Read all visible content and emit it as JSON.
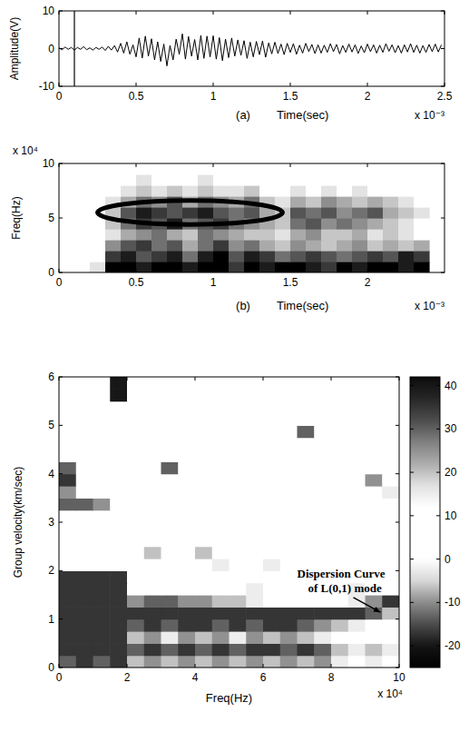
{
  "chart_data": [
    {
      "type": "line",
      "panel": "(a)",
      "x_label": "Time(sec)",
      "y_label": "Amplitude(V)",
      "x_multiplier": "x 10⁻³",
      "color": "#000000",
      "xlim": [
        0,
        2.5
      ],
      "ylim": [
        -10,
        10
      ],
      "xticks": [
        0,
        0.5,
        1,
        1.5,
        2,
        2.5
      ],
      "yticks": [
        -10,
        0,
        10
      ],
      "marker_x": 0.1,
      "x": [
        0,
        0.02,
        0.04,
        0.06,
        0.08,
        0.1,
        0.12,
        0.14,
        0.16,
        0.18,
        0.2,
        0.22,
        0.24,
        0.26,
        0.28,
        0.3,
        0.32,
        0.34,
        0.36,
        0.38,
        0.4,
        0.42,
        0.44,
        0.46,
        0.48,
        0.5,
        0.52,
        0.54,
        0.56,
        0.58,
        0.6,
        0.62,
        0.64,
        0.66,
        0.68,
        0.7,
        0.72,
        0.74,
        0.76,
        0.78,
        0.8,
        0.82,
        0.84,
        0.86,
        0.88,
        0.9,
        0.92,
        0.94,
        0.96,
        0.98,
        1,
        1.02,
        1.04,
        1.06,
        1.08,
        1.1,
        1.12,
        1.14,
        1.16,
        1.18,
        1.2,
        1.22,
        1.24,
        1.26,
        1.28,
        1.3,
        1.32,
        1.34,
        1.36,
        1.38,
        1.4,
        1.42,
        1.44,
        1.46,
        1.48,
        1.5,
        1.52,
        1.54,
        1.56,
        1.58,
        1.6,
        1.62,
        1.64,
        1.66,
        1.68,
        1.7,
        1.72,
        1.74,
        1.76,
        1.78,
        1.8,
        1.82,
        1.84,
        1.86,
        1.88,
        1.9,
        1.92,
        1.94,
        1.96,
        1.98,
        2,
        2.02,
        2.04,
        2.06,
        2.08,
        2.1,
        2.12,
        2.14,
        2.16,
        2.18,
        2.2,
        2.22,
        2.24,
        2.26,
        2.28,
        2.3,
        2.32,
        2.34,
        2.36,
        2.38,
        2.4,
        2.42,
        2.44,
        2.46,
        2.48
      ],
      "values": [
        0.2,
        -0.3,
        0.4,
        -0.2,
        0.3,
        -0.4,
        0.3,
        -0.2,
        0.5,
        -0.3,
        0.2,
        -0.4,
        0.3,
        -0.2,
        0.4,
        -0.5,
        0.6,
        -0.4,
        0.8,
        -0.9,
        1.4,
        -1.2,
        1.8,
        -1.5,
        1.0,
        -2.2,
        2.8,
        -2.5,
        3.3,
        -2.0,
        2.6,
        -3.0,
        1.8,
        -3.4,
        1.2,
        -4.6,
        0.8,
        -3.0,
        2.5,
        -1.5,
        3.9,
        -2.8,
        3.2,
        -2.0,
        2.4,
        -3.0,
        3.5,
        -2.6,
        3.3,
        -2.2,
        3.4,
        -2.8,
        2.9,
        -3.2,
        2.5,
        -2.4,
        2.8,
        -2.0,
        2.3,
        -1.8,
        2.1,
        -2.6,
        1.7,
        -2.2,
        1.9,
        -1.6,
        2.0,
        -2.3,
        1.5,
        -1.4,
        1.7,
        -1.3,
        1.2,
        -1.6,
        1.4,
        -1.0,
        1.3,
        -1.5,
        0.9,
        -1.2,
        1.4,
        -0.8,
        1.1,
        -1.3,
        1.0,
        -1.2,
        0.9,
        -1.0,
        1.3,
        -0.8,
        1.1,
        -1.4,
        0.8,
        -1.0,
        1.2,
        -0.9,
        1.0,
        -1.3,
        0.7,
        -1.1,
        1.2,
        -0.8,
        1.0,
        -1.2,
        0.9,
        -1.0,
        1.3,
        -0.7,
        1.0,
        -1.1,
        0.8,
        -1.2,
        1.0,
        -0.9,
        1.3,
        -1.0,
        0.9,
        -1.2,
        0.8,
        -1.0,
        1.1,
        -0.8,
        1.2,
        -0.9,
        1.0
      ]
    },
    {
      "type": "heatmap",
      "panel": "(b)",
      "x_label": "Time(sec)",
      "y_label": "Freq(Hz)",
      "x_multiplier": "x 10⁻³",
      "y_multiplier": "x 10⁴",
      "xlim": [
        0,
        2.5
      ],
      "ylim": [
        0,
        10
      ],
      "xticks": [
        0,
        0.5,
        1,
        1.5,
        2
      ],
      "yticks": [
        0,
        5,
        10
      ],
      "ellipse": {
        "cx": 0.85,
        "cy": 5.5,
        "rx": 0.6,
        "ry": 1.1
      },
      "x_edges": [
        0,
        0.1,
        0.2,
        0.3,
        0.4,
        0.5,
        0.6,
        0.7,
        0.8,
        0.9,
        1,
        1.1,
        1.2,
        1.3,
        1.4,
        1.5,
        1.6,
        1.7,
        1.8,
        1.9,
        2,
        2.1,
        2.2,
        2.3,
        2.4
      ],
      "y_edges": [
        0,
        1,
        2,
        3,
        4,
        5,
        6,
        7,
        8,
        9,
        10
      ],
      "cells": [
        [
          0,
          0,
          1,
          9,
          9,
          8,
          9,
          9,
          8,
          9,
          9,
          7,
          9,
          8,
          9,
          9,
          8,
          7,
          9,
          8,
          9,
          9,
          8,
          9
        ],
        [
          0,
          0,
          0,
          7,
          8,
          6,
          7,
          8,
          5,
          8,
          9,
          6,
          8,
          7,
          5,
          6,
          7,
          6,
          5,
          6,
          7,
          6,
          8,
          7
        ],
        [
          0,
          0,
          0,
          4,
          6,
          7,
          5,
          6,
          3,
          5,
          7,
          4,
          5,
          3,
          2,
          4,
          3,
          2,
          3,
          4,
          2,
          3,
          2,
          3
        ],
        [
          0,
          0,
          0,
          1,
          3,
          4,
          5,
          3,
          2,
          5,
          4,
          3,
          2,
          2,
          1,
          3,
          4,
          2,
          2,
          3,
          1,
          2,
          1,
          0
        ],
        [
          0,
          0,
          0,
          2,
          5,
          7,
          6,
          8,
          5,
          6,
          7,
          5,
          4,
          3,
          2,
          5,
          6,
          4,
          5,
          4,
          3,
          2,
          1,
          0
        ],
        [
          0,
          0,
          0,
          2,
          6,
          8,
          7,
          6,
          7,
          8,
          6,
          5,
          6,
          3,
          2,
          6,
          5,
          6,
          4,
          5,
          6,
          3,
          2,
          1
        ],
        [
          0,
          0,
          0,
          1,
          3,
          5,
          4,
          6,
          3,
          5,
          4,
          3,
          5,
          2,
          1,
          3,
          2,
          4,
          3,
          2,
          3,
          2,
          1,
          0
        ],
        [
          0,
          0,
          0,
          0,
          1,
          2,
          1,
          2,
          1,
          2,
          1,
          1,
          2,
          0,
          0,
          1,
          0,
          1,
          0,
          1,
          0,
          0,
          0,
          0
        ],
        [
          0,
          0,
          0,
          0,
          0,
          1,
          0,
          0,
          0,
          1,
          0,
          0,
          0,
          0,
          0,
          0,
          0,
          0,
          0,
          0,
          0,
          0,
          0,
          0
        ],
        [
          0,
          0,
          0,
          0,
          0,
          0,
          0,
          0,
          0,
          0,
          0,
          0,
          0,
          0,
          0,
          0,
          0,
          0,
          0,
          0,
          0,
          0,
          0,
          0
        ]
      ]
    },
    {
      "type": "heatmap",
      "x_label": "Freq(Hz)",
      "y_label": "Group velocity(km/sec)",
      "x_multiplier": "x 10⁴",
      "annotation": [
        "Dispersion Curve",
        "of L(0,1) mode"
      ],
      "xlim": [
        0,
        10
      ],
      "ylim": [
        0,
        6
      ],
      "xticks": [
        0,
        2,
        4,
        6,
        8,
        10
      ],
      "yticks": [
        0,
        1,
        2,
        3,
        4,
        5,
        6
      ],
      "colorbar": {
        "lim": [
          -25,
          42
        ],
        "ticks": [
          -20,
          -10,
          0,
          10,
          20,
          30,
          40
        ]
      },
      "x_edges": [
        0,
        0.5,
        1,
        1.5,
        2,
        2.5,
        3,
        3.5,
        4,
        4.5,
        5,
        5.5,
        6,
        6.5,
        7,
        7.5,
        8,
        8.5,
        9,
        9.5,
        10
      ],
      "y_edges": [
        0,
        0.25,
        0.5,
        0.75,
        1,
        1.25,
        1.5,
        1.75,
        2,
        2.25,
        2.5,
        2.75,
        3,
        3.25,
        3.5,
        3.75,
        4,
        4.25,
        4.5,
        4.75,
        5,
        5.25,
        5.5,
        5.75,
        6
      ],
      "cells": [
        [
          30,
          35,
          30,
          35,
          20,
          25,
          20,
          25,
          20,
          25,
          20,
          25,
          20,
          25,
          20,
          25,
          15,
          10,
          15,
          10
        ],
        [
          35,
          35,
          35,
          35,
          30,
          35,
          30,
          35,
          30,
          35,
          30,
          35,
          35,
          30,
          35,
          30,
          20,
          15,
          20,
          15
        ],
        [
          35,
          35,
          35,
          35,
          20,
          25,
          15,
          25,
          20,
          25,
          15,
          25,
          20,
          25,
          20,
          15,
          10,
          5,
          10,
          5
        ],
        [
          35,
          35,
          35,
          35,
          30,
          35,
          30,
          35,
          35,
          30,
          35,
          30,
          35,
          35,
          30,
          25,
          20,
          15,
          10,
          10
        ],
        [
          35,
          35,
          35,
          35,
          35,
          35,
          35,
          35,
          35,
          35,
          35,
          35,
          35,
          35,
          35,
          35,
          35,
          35,
          30,
          20
        ],
        [
          35,
          35,
          35,
          35,
          25,
          30,
          30,
          25,
          25,
          20,
          20,
          15,
          5,
          5,
          5,
          5,
          5,
          15,
          25,
          35
        ],
        [
          35,
          35,
          35,
          35,
          5,
          5,
          5,
          5,
          5,
          5,
          5,
          15,
          5,
          5,
          5,
          5,
          5,
          15,
          5,
          5
        ],
        [
          35,
          35,
          35,
          35,
          5,
          5,
          5,
          5,
          5,
          5,
          5,
          5,
          5,
          5,
          5,
          5,
          5,
          5,
          5,
          5
        ],
        [
          5,
          5,
          5,
          5,
          5,
          5,
          5,
          5,
          5,
          15,
          5,
          5,
          15,
          5,
          5,
          5,
          5,
          5,
          5,
          5
        ],
        [
          5,
          5,
          5,
          5,
          5,
          20,
          5,
          5,
          20,
          5,
          5,
          5,
          5,
          5,
          5,
          5,
          5,
          5,
          5,
          5
        ],
        [
          5,
          5,
          5,
          5,
          5,
          5,
          5,
          5,
          5,
          5,
          5,
          5,
          5,
          5,
          5,
          5,
          5,
          5,
          5,
          5
        ],
        [
          5,
          5,
          5,
          5,
          5,
          5,
          5,
          5,
          5,
          5,
          5,
          5,
          5,
          5,
          5,
          5,
          5,
          5,
          5,
          5
        ],
        [
          5,
          5,
          5,
          5,
          5,
          5,
          5,
          5,
          5,
          5,
          5,
          5,
          5,
          5,
          5,
          5,
          5,
          5,
          5,
          5
        ],
        [
          30,
          30,
          25,
          5,
          5,
          5,
          5,
          5,
          5,
          5,
          5,
          5,
          5,
          5,
          5,
          5,
          5,
          5,
          5,
          5
        ],
        [
          25,
          5,
          5,
          5,
          5,
          5,
          5,
          5,
          5,
          5,
          5,
          5,
          5,
          5,
          5,
          5,
          5,
          5,
          5,
          15
        ],
        [
          35,
          5,
          5,
          5,
          5,
          5,
          5,
          5,
          5,
          5,
          5,
          5,
          5,
          5,
          5,
          5,
          5,
          5,
          25,
          5
        ],
        [
          30,
          5,
          5,
          5,
          5,
          5,
          30,
          5,
          5,
          5,
          5,
          5,
          5,
          5,
          5,
          5,
          5,
          5,
          5,
          5
        ],
        [
          5,
          5,
          5,
          5,
          5,
          5,
          5,
          5,
          5,
          5,
          5,
          5,
          5,
          5,
          5,
          5,
          5,
          5,
          5,
          5
        ],
        [
          5,
          5,
          5,
          5,
          5,
          5,
          5,
          5,
          5,
          5,
          5,
          5,
          5,
          5,
          5,
          5,
          5,
          5,
          5,
          5
        ],
        [
          5,
          5,
          5,
          5,
          5,
          5,
          5,
          5,
          5,
          5,
          5,
          5,
          5,
          5,
          30,
          5,
          5,
          5,
          5,
          5
        ],
        [
          5,
          5,
          5,
          5,
          5,
          5,
          5,
          5,
          5,
          5,
          5,
          5,
          5,
          5,
          5,
          5,
          5,
          5,
          5,
          5
        ],
        [
          5,
          5,
          5,
          5,
          5,
          5,
          5,
          5,
          5,
          5,
          5,
          5,
          5,
          5,
          5,
          5,
          5,
          5,
          5,
          5
        ],
        [
          5,
          5,
          5,
          40,
          5,
          5,
          5,
          5,
          5,
          5,
          5,
          5,
          5,
          5,
          5,
          5,
          5,
          5,
          5,
          5
        ],
        [
          5,
          5,
          5,
          40,
          5,
          5,
          5,
          5,
          5,
          5,
          5,
          5,
          5,
          5,
          5,
          5,
          5,
          5,
          5,
          5
        ]
      ]
    }
  ]
}
